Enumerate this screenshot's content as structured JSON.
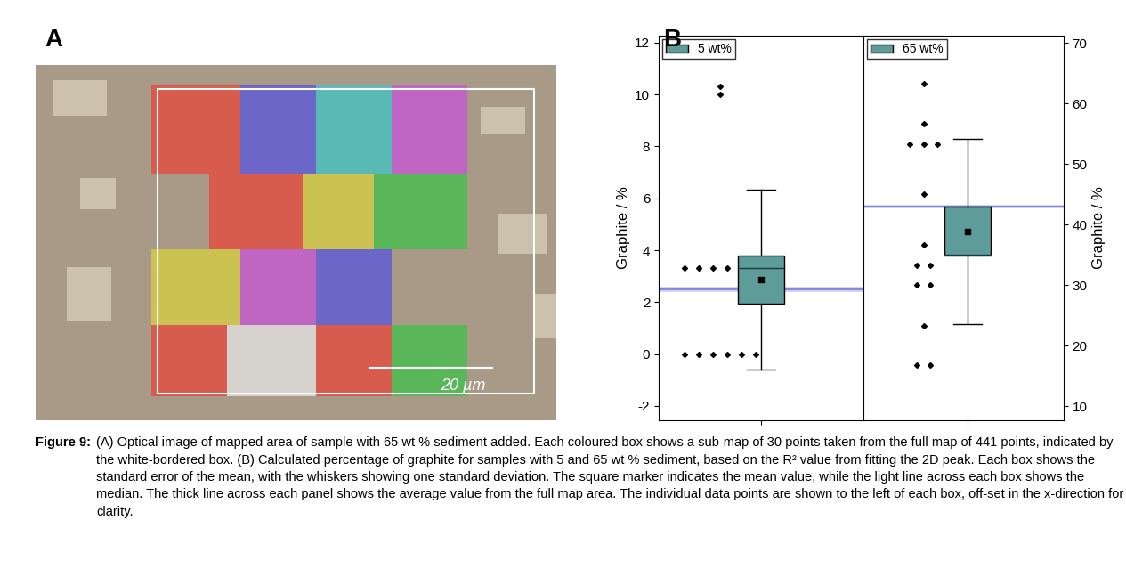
{
  "figure": {
    "panel_labels": [
      "A",
      "B"
    ],
    "caption_label": "Figure 9:",
    "caption": "(A) Optical image of mapped area of sample with 65 wt % sediment added. Each coloured box shows a sub-map of 30 points taken from the full map of 441 points, indicated by the white-bordered box. (B) Calculated percentage of graphite for samples with 5 and 65 wt % sediment, based on the R² value from fitting the 2D peak. Each box shows the standard error of the mean, with the whiskers showing one standard deviation. The square marker indicates the mean value, while the light line across each box shows the median. The thick line across each panel shows the average value from the full map area. The individual data points are shown to the left of each box, off-set in the x-direction for clarity."
  },
  "image": {
    "scale_bar": "20 µm",
    "submaps": [
      [
        "#e8473a",
        "#5a55e0",
        "#3fc4c4",
        "#c855d8"
      ],
      [
        "#e8473a",
        "#d8d040",
        "#3fc04a"
      ],
      [
        "#d8d040",
        "#c855d8",
        "#5a55e0"
      ],
      [
        "#e8473a",
        "#e6e6e6",
        "#e8473a",
        "#3fc04a"
      ]
    ]
  },
  "chart_data": [
    {
      "type": "box",
      "name": "5 wt%",
      "color": "#5e9c9a",
      "legend": "upper left",
      "ylabel": "Graphite / %",
      "tick_labels": "y",
      "ylim": [
        -2.55,
        12.27
      ],
      "yticks": [
        -2,
        0,
        2,
        4,
        6,
        8,
        10,
        12
      ],
      "points": [
        10.3,
        10.0,
        3.33,
        3.33,
        3.33,
        3.33,
        3.33,
        3.33,
        0,
        0,
        0,
        0,
        0,
        0
      ],
      "box": [
        1.95,
        3.81
      ],
      "whiskers": [
        -0.59,
        6.35
      ],
      "median": 3.33,
      "mean": 2.88,
      "full_map_average": 2.5,
      "full_map_band": [
        2.4,
        2.6
      ]
    },
    {
      "type": "box",
      "name": "65 wt%",
      "color": "#5e9c9a",
      "legend": "upper left",
      "ylabel": "Graphite / %",
      "tick_labels": "y",
      "ylim": [
        7.65,
        71.2
      ],
      "yticks": [
        10,
        20,
        30,
        40,
        50,
        60,
        70
      ],
      "points": [
        63.3,
        56.7,
        53.3,
        53.3,
        53.3,
        45,
        36.7,
        33.3,
        33.3,
        30,
        30,
        23.3,
        16.7,
        16.7
      ],
      "box": [
        34.8,
        43.0
      ],
      "whiskers": [
        23.6,
        54.2
      ],
      "median": 35.0,
      "mean": 38.9,
      "full_map_average": 43.0,
      "full_map_band": [
        42.7,
        43.3
      ]
    }
  ]
}
